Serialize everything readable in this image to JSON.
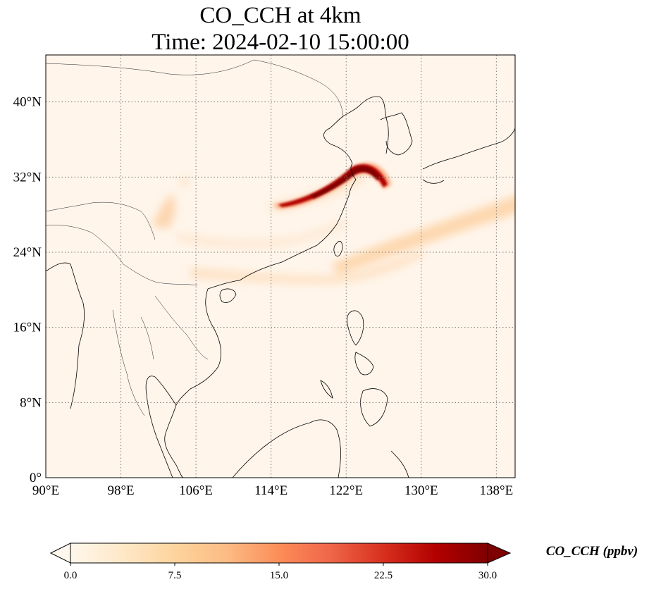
{
  "title": {
    "line1": "CO_CCH at 4km",
    "line2": "Time: 2024-02-10 15:00:00"
  },
  "map": {
    "lon_range": [
      90,
      140
    ],
    "lat_range": [
      0,
      45
    ],
    "lon_ticks": [
      90,
      98,
      106,
      114,
      122,
      130,
      138
    ],
    "lat_ticks": [
      0,
      8,
      16,
      24,
      32,
      40
    ],
    "lon_tick_labels": [
      "90°E",
      "98°E",
      "106°E",
      "114°E",
      "122°E",
      "130°E",
      "138°E"
    ],
    "lat_tick_labels": [
      "0°",
      "8°N",
      "16°N",
      "24°N",
      "32°N",
      "40°N"
    ],
    "gridlines": "dotted",
    "background_color": "#fff5eb",
    "coastline_color": "#000000"
  },
  "colorbar": {
    "label": "CO_CCH (ppbv)",
    "min": 0.0,
    "max": 30.0,
    "ticks": [
      "0.0",
      "7.5",
      "15.0",
      "22.5",
      "30.0"
    ],
    "extend": "both",
    "colormap": "OrRd",
    "colors": [
      "#fff7ec",
      "#fee8c8",
      "#fdd49e",
      "#fdbb84",
      "#fc8d59",
      "#ef6548",
      "#d7301f",
      "#b30000",
      "#7f0000"
    ]
  },
  "plumes": [
    {
      "name": "main-plume",
      "level": "high",
      "color": "#a50f15"
    },
    {
      "name": "eastern-pacific-band",
      "level": "low",
      "color": "#fdd4a8"
    },
    {
      "name": "southern-band",
      "level": "low",
      "color": "#fde0c0"
    },
    {
      "name": "west-band",
      "level": "low",
      "color": "#fde7cf"
    },
    {
      "name": "yunnan-patch",
      "level": "low",
      "color": "#fcd3aa"
    }
  ]
}
